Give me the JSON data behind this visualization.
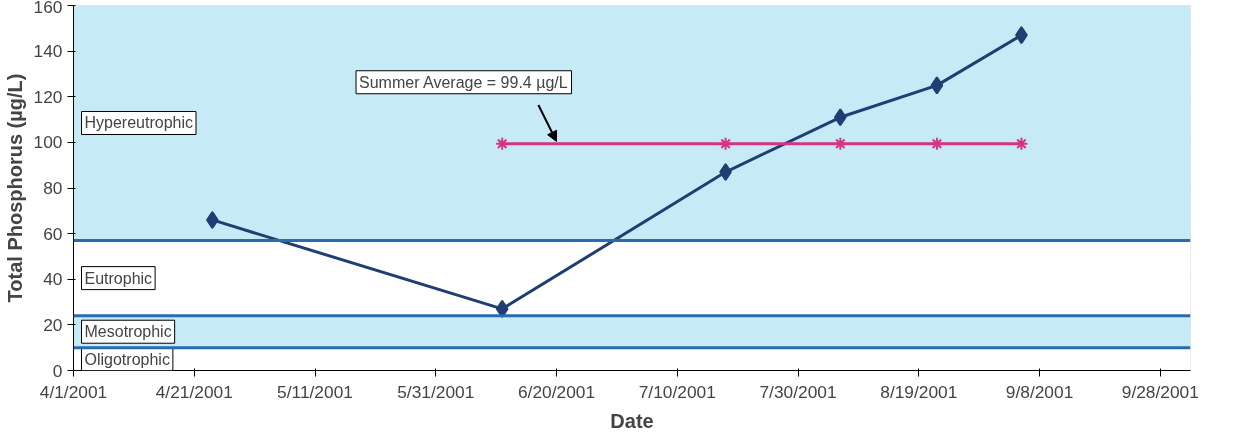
{
  "chart_data": {
    "type": "line",
    "xlabel": "Date",
    "ylabel": "Total Phosphorus (µg/L)",
    "x": [
      "2001-04-24",
      "2001-06-11",
      "2001-07-18",
      "2001-08-06",
      "2001-08-22",
      "2001-09-05"
    ],
    "series": [
      {
        "color": "#1f3f73",
        "marker": "diamond",
        "values": [
          66,
          27,
          87,
          111,
          125,
          147
        ]
      },
      {
        "color": "#d63384",
        "marker": "cross",
        "values": [
          null,
          99.4,
          99.4,
          99.4,
          99.4,
          99.4
        ]
      }
    ],
    "xlim": [
      "2001-04-01",
      "2001-10-03"
    ],
    "xticks": [
      {
        "value": "2001-04-01",
        "label": "4/1/2001"
      },
      {
        "value": "2001-04-21",
        "label": "4/21/2001"
      },
      {
        "value": "2001-05-11",
        "label": "5/11/2001"
      },
      {
        "value": "2001-05-31",
        "label": "5/31/2001"
      },
      {
        "value": "2001-06-20",
        "label": "6/20/2001"
      },
      {
        "value": "2001-07-10",
        "label": "7/10/2001"
      },
      {
        "value": "2001-07-30",
        "label": "7/30/2001"
      },
      {
        "value": "2001-08-19",
        "label": "8/19/2001"
      },
      {
        "value": "2001-09-08",
        "label": "9/8/2001"
      },
      {
        "value": "2001-09-28",
        "label": "9/28/2001"
      }
    ],
    "ylim": [
      0,
      160
    ],
    "yticks": [
      0,
      20,
      40,
      60,
      80,
      100,
      120,
      140,
      160
    ],
    "grid": "y",
    "bands": [
      {
        "axis": "y",
        "from": 57,
        "to": 160,
        "label": "Hypereutrophic",
        "color": "#c6ebf7"
      },
      {
        "axis": "y",
        "from": 24,
        "to": 57,
        "label": "Eutrophic",
        "color": "#ffffff"
      },
      {
        "axis": "y",
        "from": 10,
        "to": 24,
        "label": "Mesotrophic",
        "color": "#c6ebf7"
      },
      {
        "axis": "y",
        "from": 0,
        "to": 10,
        "label": "Oligotrophic",
        "color": "#ffffff"
      }
    ],
    "ref_lines": [
      {
        "axis": "y",
        "value": 57,
        "color": "#2a6bb0"
      },
      {
        "axis": "y",
        "value": 24,
        "color": "#2a6bb0"
      },
      {
        "axis": "y",
        "value": 10,
        "color": "#2a6bb0"
      }
    ],
    "annotations": [
      {
        "text": "Summer Average = 99.4 µg/L",
        "x": "2001-06-20",
        "y": 99.4
      }
    ]
  }
}
